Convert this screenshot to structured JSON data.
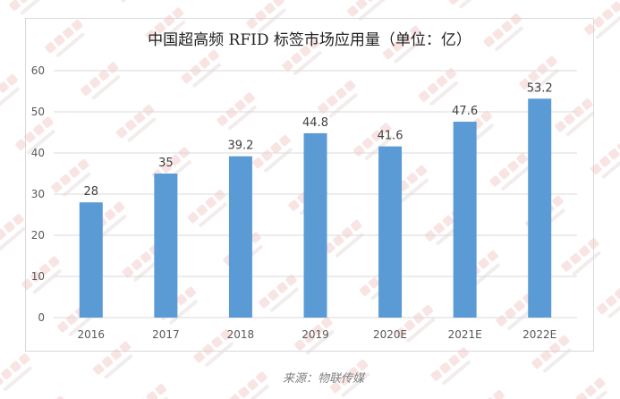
{
  "watermark": "物联传媒 Ulink Media",
  "source": "来源：物联传媒",
  "colors": {
    "bar": "#5b9bd5",
    "grid": "#d9d9d9",
    "watermark": "#f2c4c4"
  },
  "chart_data": {
    "type": "bar",
    "title": "中国超高频 RFID 标签市场应用量（单位：亿）",
    "categories": [
      "2016",
      "2017",
      "2018",
      "2019",
      "2020E",
      "2021E",
      "2022E"
    ],
    "values": [
      28,
      35,
      39.2,
      44.8,
      41.6,
      47.6,
      53.2
    ],
    "xlabel": "",
    "ylabel": "",
    "ylim": [
      0,
      60
    ],
    "yticks": [
      0,
      10,
      20,
      30,
      40,
      50,
      60
    ],
    "grid": true,
    "data_labels": true
  }
}
